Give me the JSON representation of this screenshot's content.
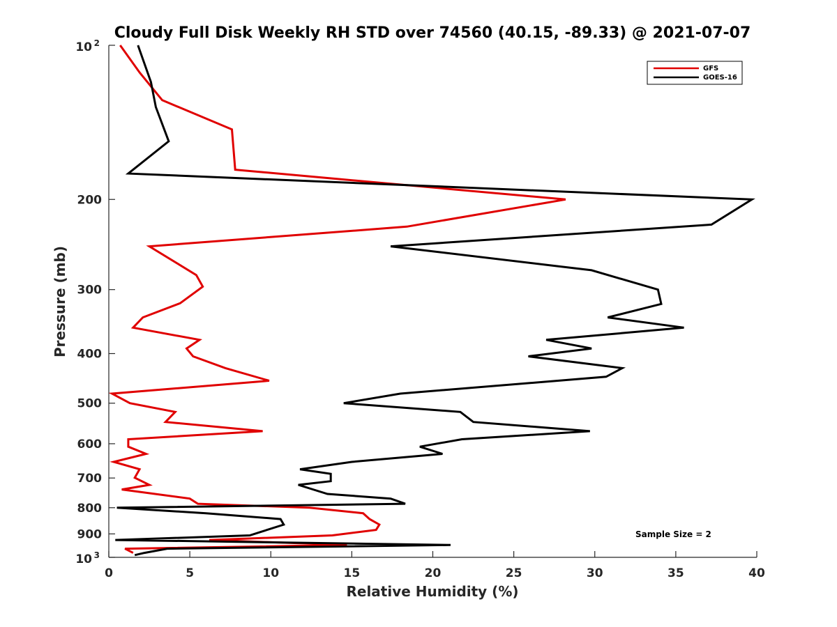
{
  "chart_data": {
    "type": "line",
    "title": "Cloudy Full Disk Weekly RH STD over 74560 (40.15, -89.33) @ 2021-07-07",
    "xlabel": "Relative Humidity (%)",
    "ylabel": "Pressure (mb)",
    "xlim": [
      0,
      40
    ],
    "ylim": [
      100,
      1000
    ],
    "y_scale": "log",
    "y_reversed": true,
    "grid": false,
    "legend_position": "top-right",
    "x_ticks": [
      0,
      5,
      10,
      15,
      20,
      25,
      30,
      35,
      40
    ],
    "x_tick_labels": [
      "0",
      "5",
      "10",
      "15",
      "20",
      "25",
      "30",
      "35",
      "40"
    ],
    "y_ticks": [
      200,
      300,
      400,
      500,
      600,
      700,
      800,
      900
    ],
    "y_tick_labels": [
      "200",
      "300",
      "400",
      "500",
      "600",
      "700",
      "800",
      "900"
    ],
    "y_tick_extremes": [
      {
        "value": 100,
        "base": "10",
        "exp": "2"
      },
      {
        "value": 1000,
        "base": "10",
        "exp": "3"
      }
    ],
    "annotation": "Sample Size = 2",
    "series": [
      {
        "name": "GFS",
        "color": "#e00000",
        "points": [
          [
            0.7,
            100
          ],
          [
            1.9,
            113
          ],
          [
            3.3,
            128
          ],
          [
            7.6,
            146
          ],
          [
            7.8,
            175
          ],
          [
            28.2,
            200
          ],
          [
            18.4,
            226
          ],
          [
            2.5,
            247
          ],
          [
            5.4,
            281
          ],
          [
            5.8,
            296
          ],
          [
            4.4,
            319
          ],
          [
            2.1,
            340
          ],
          [
            1.5,
            356
          ],
          [
            5.6,
            376
          ],
          [
            4.8,
            391
          ],
          [
            5.2,
            405
          ],
          [
            7.2,
            427
          ],
          [
            9.9,
            452
          ],
          [
            0.2,
            479
          ],
          [
            1.3,
            500
          ],
          [
            4.1,
            520
          ],
          [
            3.5,
            544
          ],
          [
            9.5,
            567
          ],
          [
            1.2,
            588
          ],
          [
            1.2,
            608
          ],
          [
            2.3,
            628
          ],
          [
            0.3,
            651
          ],
          [
            1.9,
            673
          ],
          [
            1.6,
            699
          ],
          [
            2.5,
            722
          ],
          [
            0.8,
            737
          ],
          [
            5.0,
            768
          ],
          [
            5.5,
            786
          ],
          [
            12.4,
            800
          ],
          [
            15.7,
            820
          ],
          [
            16.1,
            842
          ],
          [
            16.7,
            863
          ],
          [
            16.5,
            884
          ],
          [
            13.8,
            906
          ],
          [
            6.2,
            925
          ],
          [
            14.7,
            946
          ],
          [
            1.0,
            962
          ],
          [
            1.5,
            980
          ]
        ]
      },
      {
        "name": "GOES-16",
        "color": "#000000",
        "points": [
          [
            1.8,
            100
          ],
          [
            2.6,
            118
          ],
          [
            2.9,
            132
          ],
          [
            3.7,
            154
          ],
          [
            1.2,
            178
          ],
          [
            39.7,
            200
          ],
          [
            37.2,
            224
          ],
          [
            17.4,
            247
          ],
          [
            29.8,
            275
          ],
          [
            33.9,
            300
          ],
          [
            34.1,
            320
          ],
          [
            30.8,
            340
          ],
          [
            35.5,
            356
          ],
          [
            27.0,
            376
          ],
          [
            29.8,
            391
          ],
          [
            25.9,
            405
          ],
          [
            31.7,
            427
          ],
          [
            30.7,
            444
          ],
          [
            18.0,
            479
          ],
          [
            14.5,
            500
          ],
          [
            21.7,
            520
          ],
          [
            22.5,
            544
          ],
          [
            29.7,
            567
          ],
          [
            21.8,
            588
          ],
          [
            19.2,
            608
          ],
          [
            20.6,
            628
          ],
          [
            15.0,
            651
          ],
          [
            11.8,
            673
          ],
          [
            13.7,
            687
          ],
          [
            13.7,
            710
          ],
          [
            11.7,
            722
          ],
          [
            13.5,
            752
          ],
          [
            17.4,
            768
          ],
          [
            18.3,
            786
          ],
          [
            0.5,
            800
          ],
          [
            6.0,
            820
          ],
          [
            10.6,
            842
          ],
          [
            10.8,
            863
          ],
          [
            8.7,
            906
          ],
          [
            0.4,
            925
          ],
          [
            21.1,
            946
          ],
          [
            3.6,
            962
          ],
          [
            2.2,
            980
          ],
          [
            1.6,
            990
          ]
        ]
      }
    ]
  }
}
